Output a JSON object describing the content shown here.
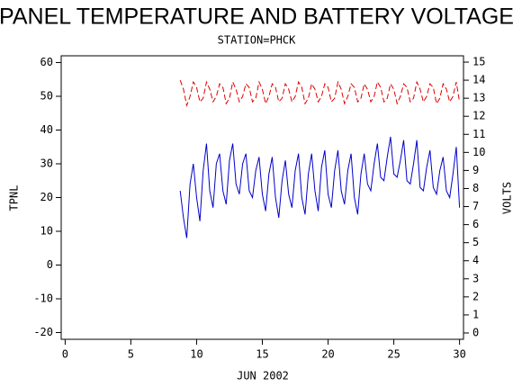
{
  "chart_data": {
    "type": "line",
    "title": "PANEL TEMPERATURE AND BATTERY VOLTAGE",
    "subtitle": "STATION=PHCK",
    "xlabel": "JUN 2002",
    "ylabel": "TPNL",
    "y2label": "VOLTS",
    "xlim": [
      -0.3,
      30.3
    ],
    "xticks": [
      0,
      5,
      10,
      15,
      20,
      25,
      30
    ],
    "ylim": [
      -22,
      62
    ],
    "yticks": [
      -20,
      -10,
      0,
      10,
      20,
      30,
      40,
      50,
      60
    ],
    "y2lim": [
      -0.35,
      15.35
    ],
    "y2ticks": [
      0,
      1,
      2,
      3,
      4,
      5,
      6,
      7,
      8,
      9,
      10,
      11,
      12,
      13,
      14,
      15
    ],
    "x": [
      8.75,
      9,
      9.25,
      9.5,
      9.75,
      10,
      10.25,
      10.5,
      10.75,
      11,
      11.25,
      11.5,
      11.75,
      12,
      12.25,
      12.5,
      12.75,
      13,
      13.25,
      13.5,
      13.75,
      14,
      14.25,
      14.5,
      14.75,
      15,
      15.25,
      15.5,
      15.75,
      16,
      16.25,
      16.5,
      16.75,
      17,
      17.25,
      17.5,
      17.75,
      18,
      18.25,
      18.5,
      18.75,
      19,
      19.25,
      19.5,
      19.75,
      20,
      20.25,
      20.5,
      20.75,
      21,
      21.25,
      21.5,
      21.75,
      22,
      22.25,
      22.5,
      22.75,
      23,
      23.25,
      23.5,
      23.75,
      24,
      24.25,
      24.5,
      24.75,
      25,
      25.25,
      25.5,
      25.75,
      26,
      26.25,
      26.5,
      26.75,
      27,
      27.25,
      27.5,
      27.75,
      28,
      28.25,
      28.5,
      28.75,
      29,
      29.25,
      29.5,
      29.75,
      30
    ],
    "series": [
      {
        "name": "TPNL",
        "color": "#0000cc",
        "style": "solid",
        "axis": "y",
        "values": [
          22,
          14,
          8,
          24,
          30,
          20,
          13,
          28,
          36,
          22,
          17,
          30,
          33,
          22,
          18,
          31,
          36,
          24,
          21,
          30,
          33,
          22,
          20,
          28,
          32,
          21,
          16,
          27,
          32,
          20,
          14,
          25,
          31,
          21,
          17,
          28,
          33,
          20,
          15,
          27,
          33,
          22,
          16,
          29,
          34,
          21,
          17,
          28,
          34,
          22,
          18,
          28,
          33,
          20,
          15,
          27,
          33,
          24,
          22,
          30,
          36,
          26,
          25,
          32,
          38,
          27,
          26,
          31,
          37,
          25,
          24,
          30,
          37,
          23,
          22,
          29,
          34,
          23,
          21,
          28,
          32,
          22,
          20,
          27,
          35,
          17
        ]
      },
      {
        "name": "VOLTS",
        "color": "#dd0000",
        "style": "dashed",
        "axis": "y2",
        "values": [
          14.0,
          13.5,
          12.6,
          13.1,
          13.9,
          13.6,
          12.8,
          13.0,
          13.9,
          13.5,
          12.8,
          13.1,
          13.8,
          13.6,
          12.7,
          13.0,
          13.9,
          13.5,
          12.8,
          13.1,
          13.8,
          13.6,
          12.8,
          13.0,
          13.9,
          13.5,
          12.7,
          13.1,
          13.8,
          13.6,
          12.8,
          13.0,
          13.8,
          13.5,
          12.8,
          13.1,
          13.9,
          13.6,
          12.7,
          13.0,
          13.8,
          13.5,
          12.8,
          13.1,
          13.8,
          13.6,
          12.8,
          13.0,
          13.9,
          13.5,
          12.7,
          13.1,
          13.8,
          13.6,
          12.8,
          13.0,
          13.8,
          13.5,
          12.8,
          13.1,
          13.9,
          13.6,
          12.8,
          13.0,
          13.8,
          13.5,
          12.7,
          13.1,
          13.8,
          13.6,
          12.8,
          13.0,
          13.9,
          13.5,
          12.8,
          13.1,
          13.8,
          13.6,
          12.7,
          13.0,
          13.8,
          13.5,
          12.8,
          13.1,
          13.9,
          12.8
        ]
      }
    ]
  }
}
